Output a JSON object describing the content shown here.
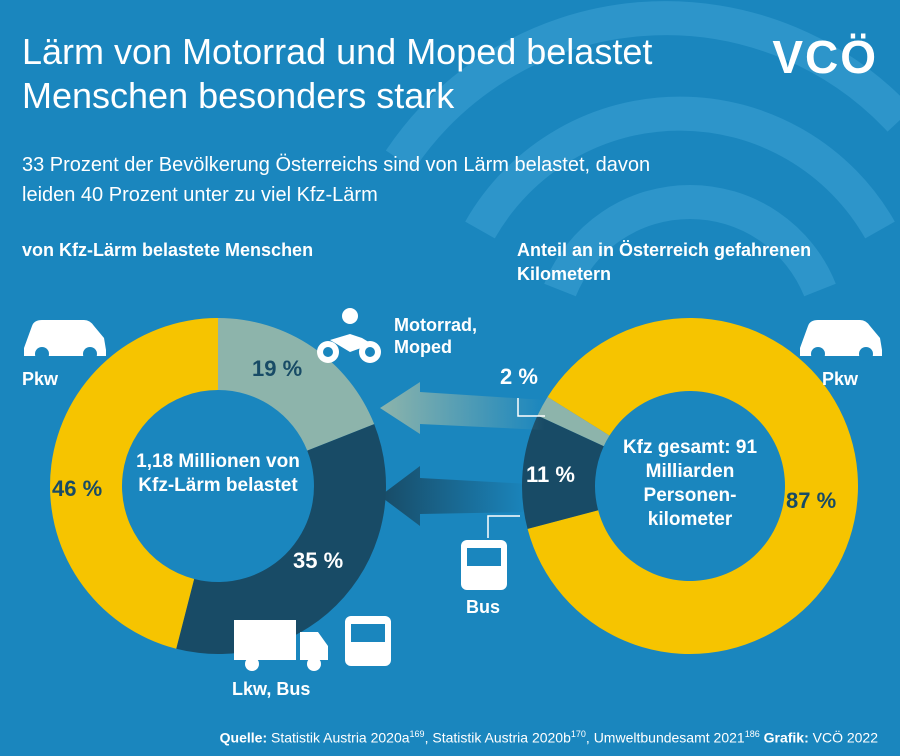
{
  "title": "Lärm von Motorrad und Moped belastet Menschen besonders stark",
  "subtitle": "33 Prozent der Bevölkerung Österreichs sind von Lärm belastet, davon leiden 40 Prozent unter zu viel Kfz-Lärm",
  "logo": "VCÖ",
  "source": {
    "label": "Quelle:",
    "refs": [
      {
        "text": "Statistik Austria 2020a",
        "sup": "169"
      },
      {
        "text": ", Statistik Austria 2020b",
        "sup": "170"
      },
      {
        "text": ", Umweltbundesamt 2021",
        "sup": "186"
      }
    ],
    "credit_label": "Grafik:",
    "credit": "VCÖ 2022"
  },
  "chart_data": [
    {
      "type": "pie",
      "title": "von Kfz-Lärm belastete Menschen",
      "center_label": "1,18 Millionen von Kfz-Lärm belastet",
      "categories": [
        "Motorrad, Moped",
        "Lkw, Bus",
        "Pkw"
      ],
      "values": [
        19,
        35,
        46
      ],
      "value_labels": [
        "19 %",
        "35 %",
        "46 %"
      ],
      "colors": [
        "#8db4ab",
        "#184b66",
        "#f6c400"
      ]
    },
    {
      "type": "pie",
      "title": "Anteil an in Österreich gefahrenen Kilometern",
      "center_label": "Kfz gesamt: 91 Milliarden Personen-kilometer",
      "categories": [
        "Pkw",
        "Bus",
        null
      ],
      "values": [
        87,
        11,
        2
      ],
      "value_labels": [
        "87 %",
        "11 %",
        "2 %"
      ],
      "colors": [
        "#f6c400",
        "#184b66",
        "#8db4ab"
      ]
    }
  ]
}
